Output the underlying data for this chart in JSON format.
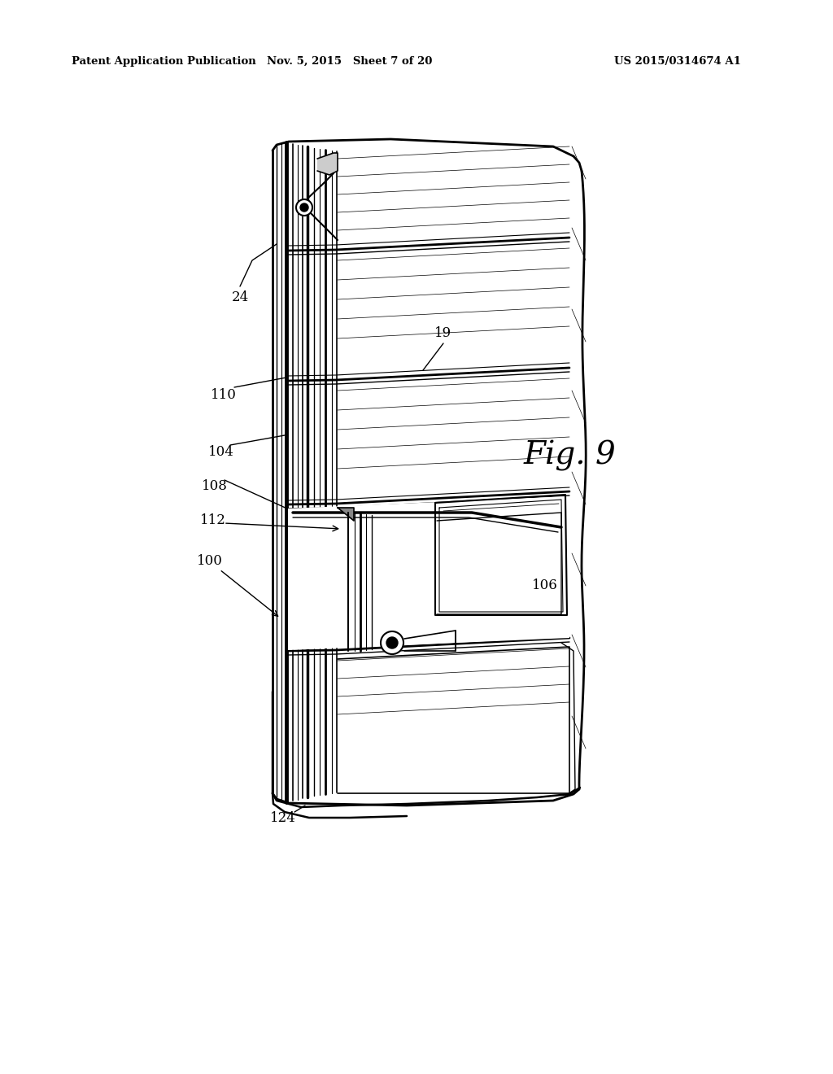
{
  "header_left": "Patent Application Publication",
  "header_mid": "Nov. 5, 2015   Sheet 7 of 20",
  "header_right": "US 2015/0314674 A1",
  "fig_label": "Fig. 9",
  "bg": "#ffffff"
}
